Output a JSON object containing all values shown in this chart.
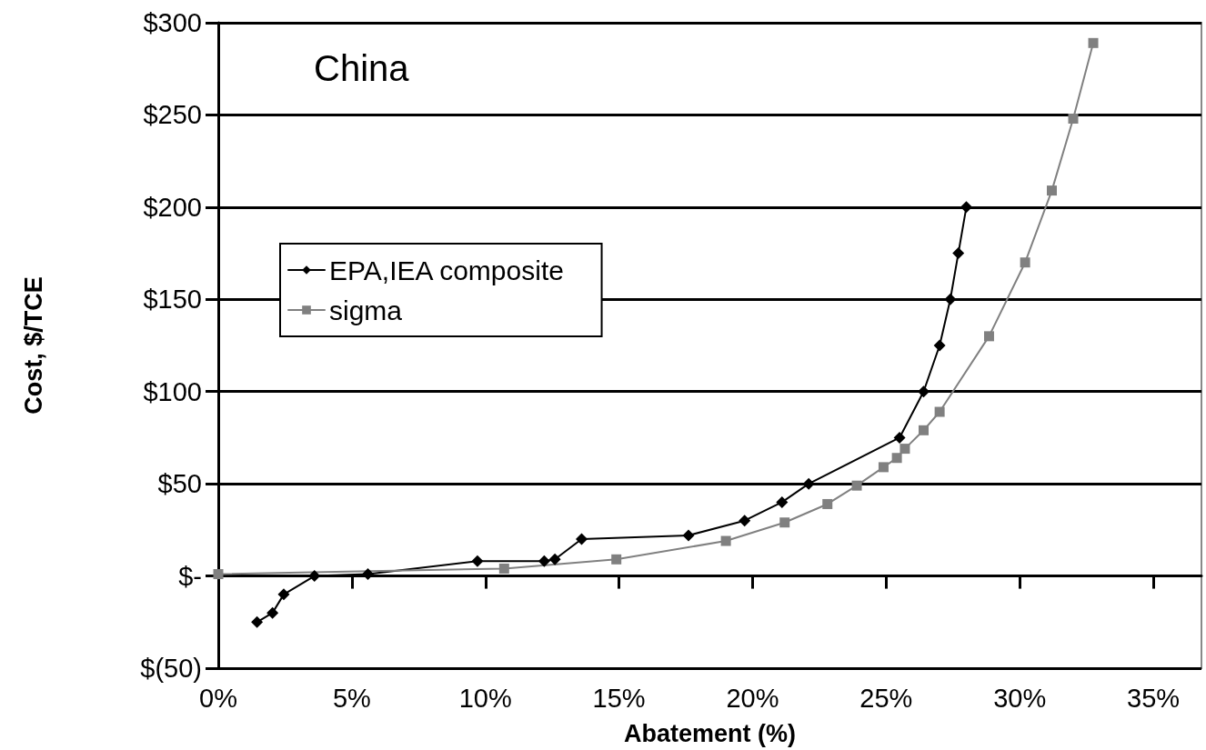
{
  "chart_data": {
    "type": "line",
    "title": "China",
    "xlabel": "Abatement (%)",
    "ylabel": "Cost, $/TCE",
    "xlim": [
      0,
      36.8
    ],
    "xticks": [
      {
        "value": 0,
        "label": "0%"
      },
      {
        "value": 5,
        "label": "5%"
      },
      {
        "value": 10,
        "label": "10%"
      },
      {
        "value": 15,
        "label": "15%"
      },
      {
        "value": 20,
        "label": "20%"
      },
      {
        "value": 25,
        "label": "25%"
      },
      {
        "value": 30,
        "label": "30%"
      },
      {
        "value": 35,
        "label": "35%"
      }
    ],
    "ylim": [
      -50,
      300
    ],
    "yticks": [
      {
        "value": -50,
        "label": "$(50)"
      },
      {
        "value": 0,
        "label": "$-"
      },
      {
        "value": 50,
        "label": "$50"
      },
      {
        "value": 100,
        "label": "$100"
      },
      {
        "value": 150,
        "label": "$150"
      },
      {
        "value": 200,
        "label": "$200"
      },
      {
        "value": 250,
        "label": "$250"
      },
      {
        "value": 300,
        "label": "$300"
      }
    ],
    "grid": "y",
    "legend": "left",
    "series": [
      {
        "name": "EPA,IEA composite",
        "color": "#000000",
        "marker": "diamond",
        "x": [
          1.45,
          2.03,
          2.45,
          3.6,
          5.6,
          9.7,
          12.2,
          12.6,
          13.6,
          17.6,
          19.7,
          21.1,
          22.1,
          25.5,
          26.4,
          27.0,
          27.4,
          27.7,
          28.0
        ],
        "values": [
          -25,
          -20,
          -10,
          0,
          1,
          8,
          8,
          9,
          20,
          22,
          30,
          40,
          50,
          75,
          100,
          125,
          150,
          175,
          200
        ]
      },
      {
        "name": "sigma",
        "color": "#808080",
        "marker": "square",
        "x": [
          0,
          10.7,
          14.9,
          19.0,
          21.2,
          22.8,
          23.9,
          24.9,
          25.4,
          25.7,
          26.4,
          27.0,
          28.85,
          30.2,
          31.2,
          32.0,
          32.75
        ],
        "values": [
          1,
          4,
          9,
          19,
          29,
          39,
          49,
          59,
          64,
          69,
          79,
          89,
          130,
          170,
          209,
          248,
          289
        ]
      }
    ]
  }
}
